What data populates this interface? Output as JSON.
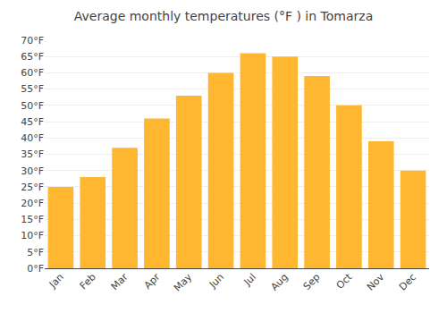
{
  "chart_data": {
    "type": "bar",
    "title": "Average monthly temperatures (°F ) in Tomarza",
    "categories": [
      "Jan",
      "Feb",
      "Mar",
      "Apr",
      "May",
      "Jun",
      "Jul",
      "Aug",
      "Sep",
      "Oct",
      "Nov",
      "Dec"
    ],
    "values": [
      25,
      28,
      37,
      46,
      53,
      60,
      66,
      65,
      59,
      50,
      39,
      30
    ],
    "color": "#FFB732",
    "ylim": [
      0,
      70
    ],
    "yticks": [
      {
        "value": 0,
        "label": "0°F"
      },
      {
        "value": 5,
        "label": "5°F"
      },
      {
        "value": 10,
        "label": "10°F"
      },
      {
        "value": 15,
        "label": "15°F"
      },
      {
        "value": 20,
        "label": "20°F"
      },
      {
        "value": 25,
        "label": "25°F"
      },
      {
        "value": 30,
        "label": "30°F"
      },
      {
        "value": 35,
        "label": "35°F"
      },
      {
        "value": 40,
        "label": "40°F"
      },
      {
        "value": 45,
        "label": "45°F"
      },
      {
        "value": 50,
        "label": "50°F"
      },
      {
        "value": 55,
        "label": "55°F"
      },
      {
        "value": 60,
        "label": "60°F"
      },
      {
        "value": 65,
        "label": "65°F"
      },
      {
        "value": 70,
        "label": "70°F"
      }
    ],
    "grid": true
  }
}
